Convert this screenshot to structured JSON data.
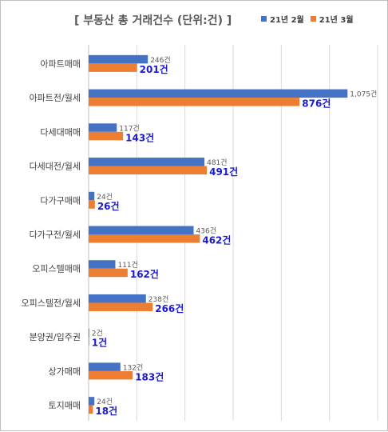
{
  "chart_data": {
    "type": "bar",
    "orientation": "horizontal",
    "title": "[ 부동산 총 거래건수 (단위:건) ]",
    "categories": [
      "아파트매매",
      "아파트전/월세",
      "다세대매매",
      "다세대전/월세",
      "다가구매매",
      "다가구전/월세",
      "오피스텔매매",
      "오피스텔전/월세",
      "분양권/입주권",
      "상가매매",
      "토지매매"
    ],
    "series": [
      {
        "name": "21년 2월",
        "color": "#4472c4",
        "values": [
          246,
          1075,
          117,
          481,
          24,
          436,
          111,
          238,
          2,
          132,
          24
        ],
        "labels": [
          "246건",
          "1,075건",
          "117건",
          "481건",
          "24건",
          "436건",
          "111건",
          "238건",
          "2건",
          "132건",
          "24건"
        ]
      },
      {
        "name": "21년 3월",
        "color": "#ed7d31",
        "values": [
          201,
          876,
          143,
          491,
          26,
          462,
          162,
          266,
          1,
          183,
          18
        ],
        "labels": [
          "201건",
          "876건",
          "143건",
          "491건",
          "26건",
          "462건",
          "162건",
          "266건",
          "1건",
          "183건",
          "18건"
        ]
      }
    ],
    "xlim": [
      0,
      1200
    ],
    "x_grid_step": 200,
    "grid": true,
    "legend_position": "top-right"
  }
}
